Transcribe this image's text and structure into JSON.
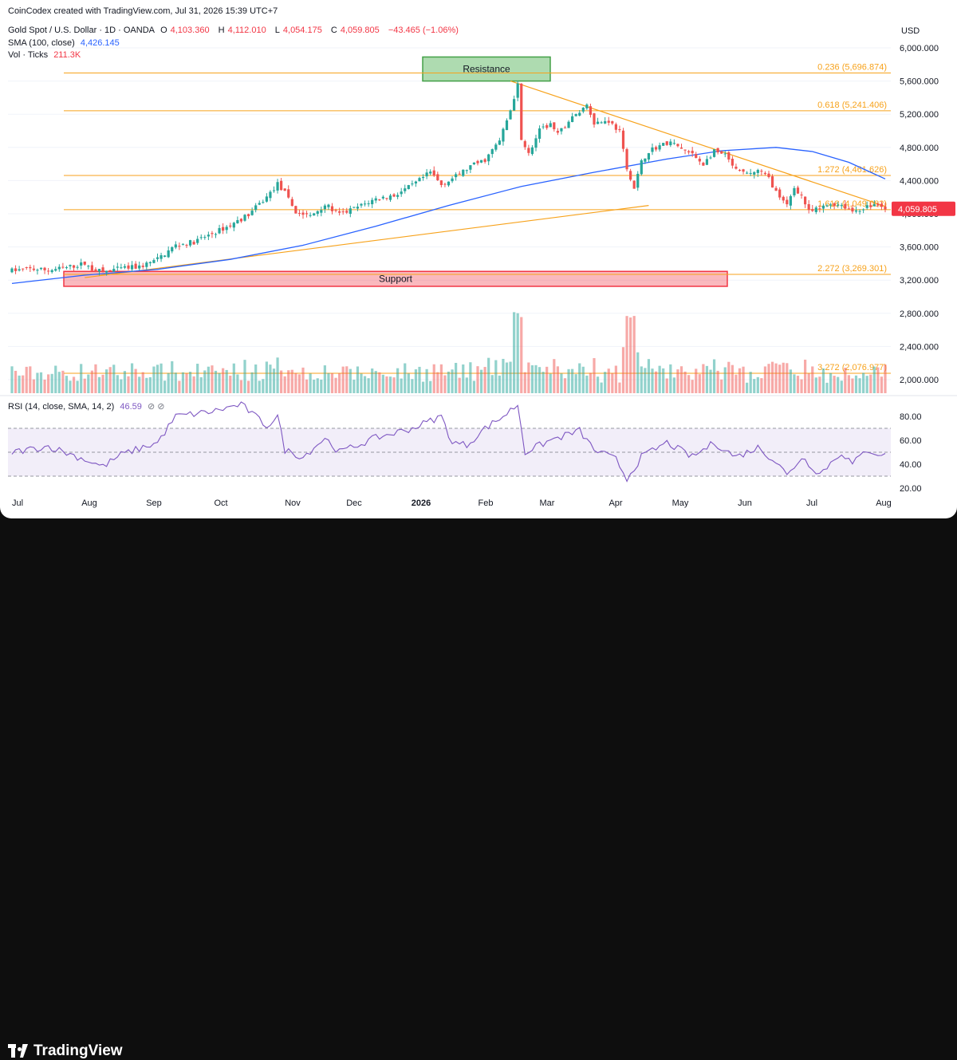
{
  "header": {
    "credit": "CoinCodex created with TradingView.com, Jul 31, 2026 15:39 UTC+7",
    "symbol": "Gold Spot / U.S. Dollar · 1D · OANDA",
    "o_label": "O",
    "o_val": "4,103.360",
    "h_label": "H",
    "h_val": "4,112.010",
    "l_label": "L",
    "l_val": "4,054.175",
    "c_label": "C",
    "c_val": "4,059.805",
    "change": "−43.465 (−1.06%)",
    "sma_label": "SMA (100, close)",
    "sma_val": "4,426.145",
    "vol_label": "Vol · Ticks",
    "vol_val": "211.3K",
    "currency": "USD"
  },
  "rsi_header": {
    "label": "RSI (14, close, SMA, 14, 2)",
    "value": "46.59"
  },
  "footer": {
    "brand": "TradingView"
  },
  "colors": {
    "up": "#26a69a",
    "down": "#ef5350",
    "sma": "#2962ff",
    "fib": "#f7a21b",
    "rsi": "#7e57c2",
    "accent": "#f23645"
  },
  "chart_data": {
    "type": "candlestick",
    "ylim": [
      2000,
      6000
    ],
    "price_ticks": [
      "6,000.000",
      "5,600.000",
      "5,200.000",
      "4,800.000",
      "4,400.000",
      "4,000.000",
      "3,600.000",
      "3,200.000",
      "2,800.000",
      "2,400.000",
      "2,000.000"
    ],
    "time_labels": [
      "Jul",
      "Aug",
      "Sep",
      "Oct",
      "Nov",
      "Dec",
      "2026",
      "Feb",
      "Mar",
      "Apr",
      "May",
      "Jun",
      "Jul",
      "Aug"
    ],
    "last_price": "4,059.805",
    "fib_levels": [
      {
        "label": "0.236 (5,696.874)",
        "value": 5696.874
      },
      {
        "label": "0.618 (5,241.406)",
        "value": 5241.406
      },
      {
        "label": "1.272 (4,461.626)",
        "value": 4461.626
      },
      {
        "label": "1.618 (4,049.082)",
        "value": 4049.082
      },
      {
        "label": "2.272 (3,269.301)",
        "value": 3269.301
      },
      {
        "label": "3.272 (2,076.977)",
        "value": 2076.977
      }
    ],
    "zones": [
      {
        "label": "Resistance",
        "low": 5600,
        "high": 5890
      },
      {
        "label": "Support",
        "low": 3125,
        "high": 3305
      }
    ],
    "price_path": [
      [
        0,
        3315
      ],
      [
        5,
        3335
      ],
      [
        10,
        3320
      ],
      [
        15,
        3350
      ],
      [
        20,
        3400
      ],
      [
        22,
        3330
      ],
      [
        25,
        3300
      ],
      [
        30,
        3340
      ],
      [
        35,
        3360
      ],
      [
        40,
        3450
      ],
      [
        45,
        3620
      ],
      [
        50,
        3660
      ],
      [
        55,
        3760
      ],
      [
        60,
        3860
      ],
      [
        65,
        3990
      ],
      [
        70,
        4200
      ],
      [
        73,
        4360
      ],
      [
        75,
        4250
      ],
      [
        78,
        4020
      ],
      [
        82,
        3970
      ],
      [
        86,
        4110
      ],
      [
        90,
        3990
      ],
      [
        95,
        4080
      ],
      [
        100,
        4180
      ],
      [
        105,
        4220
      ],
      [
        110,
        4340
      ],
      [
        115,
        4500
      ],
      [
        118,
        4350
      ],
      [
        122,
        4450
      ],
      [
        126,
        4570
      ],
      [
        130,
        4650
      ],
      [
        134,
        4880
      ],
      [
        137,
        5250
      ],
      [
        139,
        5560
      ],
      [
        140,
        4920
      ],
      [
        142,
        4720
      ],
      [
        145,
        5000
      ],
      [
        148,
        5080
      ],
      [
        150,
        4950
      ],
      [
        153,
        5120
      ],
      [
        156,
        5230
      ],
      [
        158,
        5320
      ],
      [
        160,
        5100
      ],
      [
        164,
        5120
      ],
      [
        167,
        4990
      ],
      [
        169,
        4520
      ],
      [
        171,
        4300
      ],
      [
        173,
        4620
      ],
      [
        175,
        4760
      ],
      [
        178,
        4820
      ],
      [
        181,
        4860
      ],
      [
        184,
        4780
      ],
      [
        187,
        4710
      ],
      [
        190,
        4600
      ],
      [
        193,
        4750
      ],
      [
        196,
        4700
      ],
      [
        199,
        4520
      ],
      [
        202,
        4480
      ],
      [
        205,
        4520
      ],
      [
        208,
        4430
      ],
      [
        211,
        4180
      ],
      [
        213,
        4100
      ],
      [
        215,
        4320
      ],
      [
        217,
        4220
      ],
      [
        219,
        4020
      ],
      [
        222,
        4060
      ],
      [
        225,
        4120
      ],
      [
        228,
        4110
      ],
      [
        231,
        4030
      ],
      [
        234,
        4070
      ],
      [
        237,
        4110
      ],
      [
        240,
        4060
      ]
    ],
    "sma_path": [
      [
        0,
        3160
      ],
      [
        20,
        3260
      ],
      [
        40,
        3330
      ],
      [
        60,
        3450
      ],
      [
        80,
        3620
      ],
      [
        100,
        3850
      ],
      [
        120,
        4100
      ],
      [
        140,
        4330
      ],
      [
        160,
        4500
      ],
      [
        180,
        4660
      ],
      [
        195,
        4760
      ],
      [
        210,
        4800
      ],
      [
        220,
        4750
      ],
      [
        230,
        4620
      ],
      [
        236,
        4500
      ],
      [
        240,
        4420
      ]
    ],
    "volume_spikes": [
      {
        "day": 139,
        "ticks": 225
      },
      {
        "day": 170,
        "ticks": 235
      }
    ],
    "rsi": {
      "yticks": [
        "80.00",
        "60.00",
        "40.00",
        "20.00"
      ],
      "upper_band": 70,
      "lower_band": 30,
      "path": [
        [
          0,
          50
        ],
        [
          10,
          55
        ],
        [
          20,
          44
        ],
        [
          25,
          38
        ],
        [
          30,
          48
        ],
        [
          40,
          58
        ],
        [
          45,
          80
        ],
        [
          55,
          84
        ],
        [
          63,
          90
        ],
        [
          70,
          72
        ],
        [
          73,
          80
        ],
        [
          75,
          52
        ],
        [
          80,
          46
        ],
        [
          86,
          62
        ],
        [
          90,
          50
        ],
        [
          100,
          62
        ],
        [
          110,
          70
        ],
        [
          118,
          80
        ],
        [
          121,
          58
        ],
        [
          125,
          56
        ],
        [
          130,
          70
        ],
        [
          135,
          80
        ],
        [
          139,
          90
        ],
        [
          141,
          50
        ],
        [
          148,
          60
        ],
        [
          156,
          68
        ],
        [
          160,
          52
        ],
        [
          166,
          44
        ],
        [
          169,
          28
        ],
        [
          173,
          46
        ],
        [
          180,
          58
        ],
        [
          187,
          46
        ],
        [
          193,
          58
        ],
        [
          199,
          46
        ],
        [
          205,
          54
        ],
        [
          211,
          40
        ],
        [
          213,
          30
        ],
        [
          217,
          46
        ],
        [
          222,
          32
        ],
        [
          228,
          50
        ],
        [
          231,
          40
        ],
        [
          235,
          52
        ],
        [
          240,
          47
        ]
      ]
    }
  }
}
